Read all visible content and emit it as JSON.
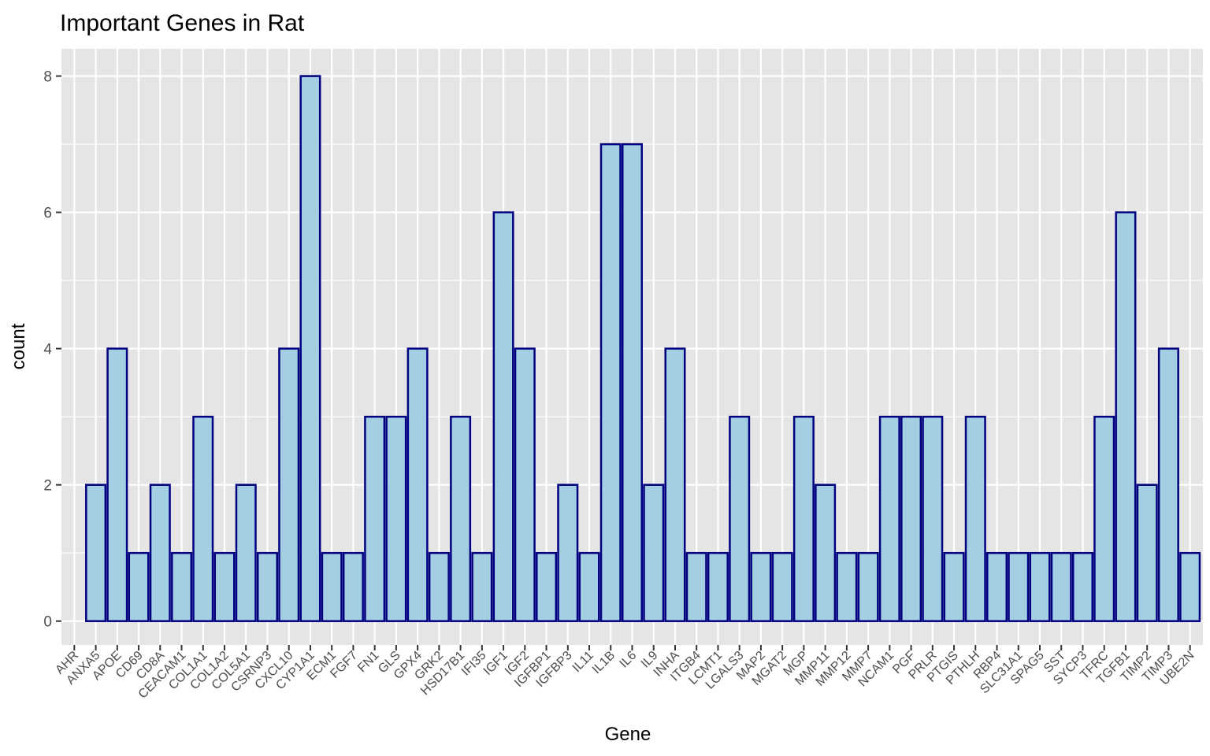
{
  "chart_data": {
    "type": "bar",
    "title": "Important Genes in Rat",
    "xlabel": "Gene",
    "ylabel": "count",
    "ylim": [
      -0.35,
      8.4
    ],
    "yticks": [
      0,
      2,
      4,
      6,
      8
    ],
    "grid": true,
    "legend": "none",
    "categories": [
      "AHR",
      "ANXA5",
      "APOE",
      "CD69",
      "CD8A",
      "CEACAM1",
      "COL1A1",
      "COL1A2",
      "COL5A1",
      "CSRNP3",
      "CXCL10",
      "CYP1A1",
      "ECM1",
      "FGF7",
      "FN1",
      "GLS",
      "GPX4",
      "GRK2",
      "HSD17B1",
      "IFI35",
      "IGF1",
      "IGF2",
      "IGFBP1",
      "IGFBP3",
      "IL11",
      "IL1B",
      "IL6",
      "IL9",
      "INHA",
      "ITGB4",
      "LCMT1",
      "LGALS3",
      "MAP2",
      "MGAT2",
      "MGP",
      "MMP11",
      "MMP12",
      "MMP7",
      "NCAM1",
      "PGF",
      "PRLR",
      "PTGIS",
      "PTHLH",
      "RBP4",
      "SLC31A1",
      "SPAG5",
      "SST",
      "SYCP3",
      "TFRC",
      "TGFB1",
      "TIMP2",
      "TIMP3",
      "UBE2N"
    ],
    "values": [
      0,
      2,
      4,
      1,
      2,
      1,
      3,
      1,
      2,
      1,
      4,
      8,
      1,
      1,
      3,
      3,
      4,
      1,
      3,
      1,
      6,
      4,
      1,
      2,
      1,
      7,
      7,
      2,
      4,
      1,
      1,
      3,
      1,
      1,
      3,
      2,
      1,
      1,
      3,
      3,
      3,
      1,
      3,
      1,
      1,
      1,
      1,
      1,
      3,
      6,
      2,
      4,
      1
    ],
    "colors": {
      "panel": "#e5e5e5",
      "grid": "#ffffff",
      "bar_fill": "#a4cfe2",
      "bar_stroke": "#000080"
    }
  }
}
